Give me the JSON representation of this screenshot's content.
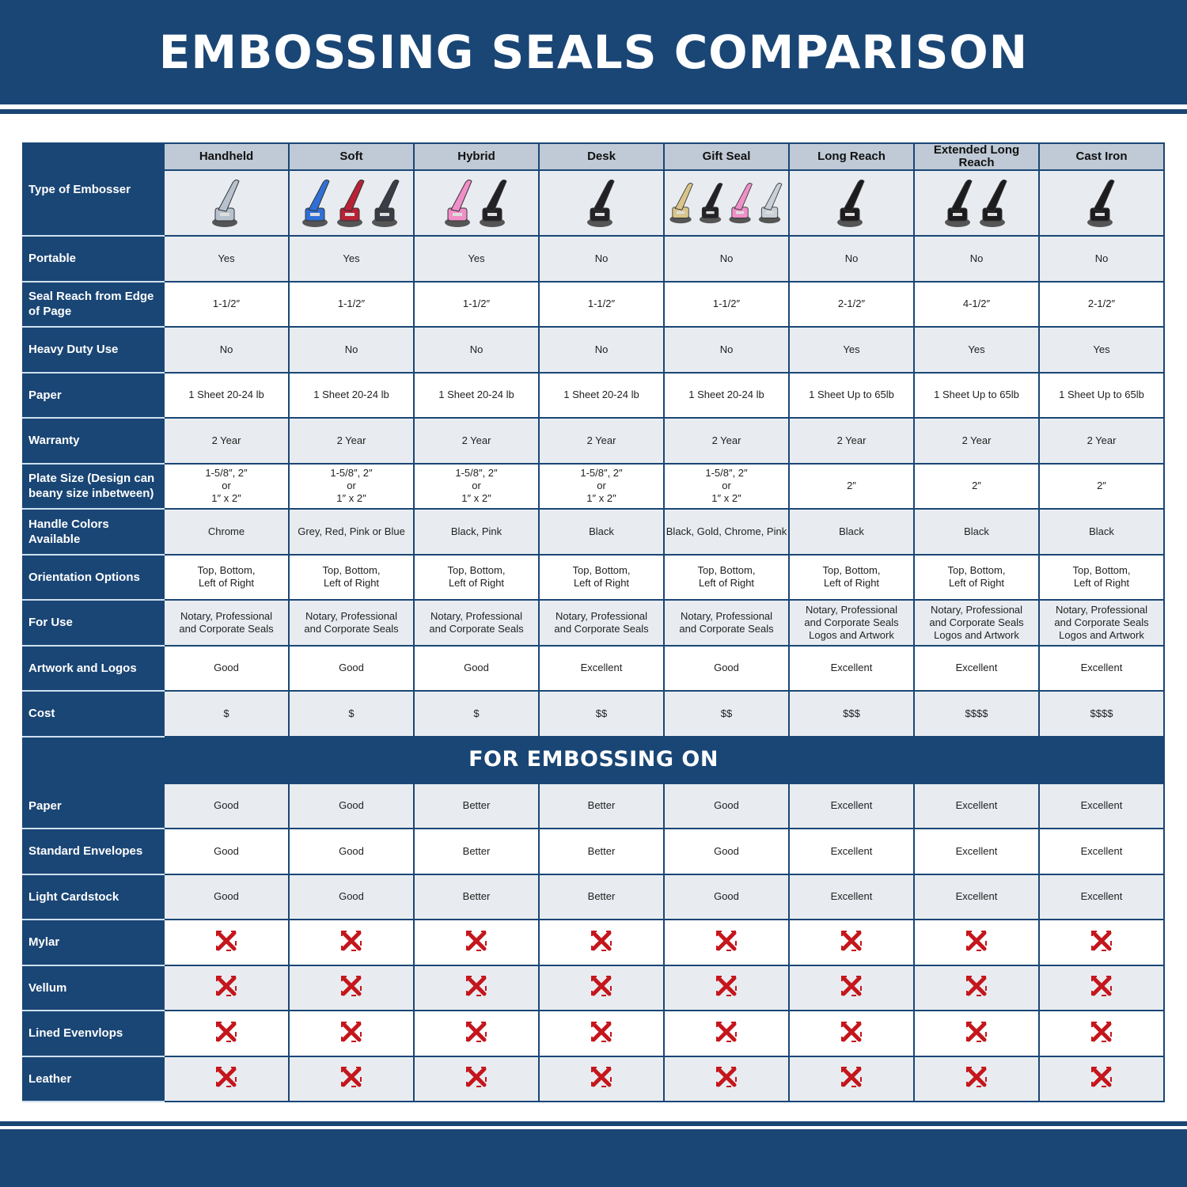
{
  "title": "EMBOSSING SEALS COMPARISON",
  "type_label": "Type of Embosser",
  "columns": [
    {
      "name": "Handheld",
      "colors": [
        "#b8c2cf"
      ]
    },
    {
      "name": "Soft",
      "colors": [
        "#2f6fd6",
        "#b82235",
        "#3a3d45"
      ]
    },
    {
      "name": "Hybrid",
      "colors": [
        "#f08fc8",
        "#222226"
      ]
    },
    {
      "name": "Desk",
      "colors": [
        "#222226"
      ]
    },
    {
      "name": "Gift Seal",
      "colors": [
        "#d9c58a",
        "#222226",
        "#f08fc8",
        "#c9d0d8"
      ]
    },
    {
      "name": "Long Reach",
      "colors": [
        "#1c1c1f"
      ]
    },
    {
      "name": "Extended Long Reach",
      "colors": [
        "#1c1c1f",
        "#1c1c1f"
      ]
    },
    {
      "name": "Cast Iron",
      "colors": [
        "#1c1c1f"
      ]
    }
  ],
  "rows": [
    {
      "label": "Portable",
      "values": [
        "Yes",
        "Yes",
        "Yes",
        "No",
        "No",
        "No",
        "No",
        "No"
      ]
    },
    {
      "label": "Seal Reach from Edge of Page",
      "values": [
        "1-1/2″",
        "1-1/2″",
        "1-1/2″",
        "1-1/2″",
        "1-1/2″",
        "2-1/2″",
        "4-1/2″",
        "2-1/2″"
      ]
    },
    {
      "label": "Heavy Duty Use",
      "values": [
        "No",
        "No",
        "No",
        "No",
        "No",
        "Yes",
        "Yes",
        "Yes"
      ]
    },
    {
      "label": "Paper",
      "values": [
        "1 Sheet 20-24 lb",
        "1 Sheet 20-24 lb",
        "1 Sheet 20-24 lb",
        "1 Sheet 20-24 lb",
        "1 Sheet 20-24 lb",
        "1 Sheet Up to 65lb",
        "1 Sheet Up to 65lb",
        "1 Sheet Up to 65lb"
      ]
    },
    {
      "label": "Warranty",
      "values": [
        "2 Year",
        "2 Year",
        "2 Year",
        "2 Year",
        "2 Year",
        "2 Year",
        "2 Year",
        "2 Year"
      ]
    },
    {
      "label": "Plate Size (Design can beany size inbetween)",
      "values": [
        "1-5/8″, 2″\nor\n1″ x 2″",
        "1-5/8″, 2″\nor\n1″ x 2″",
        "1-5/8″, 2″\nor\n1″ x 2″",
        "1-5/8″, 2″\nor\n1″ x 2″",
        "1-5/8″, 2″\nor\n1″ x 2″",
        "2″",
        "2″",
        "2″"
      ]
    },
    {
      "label": "Handle Colors Available",
      "values": [
        "Chrome",
        "Grey, Red, Pink or Blue",
        "Black, Pink",
        "Black",
        "Black, Gold, Chrome, Pink",
        "Black",
        "Black",
        "Black"
      ]
    },
    {
      "label": "Orientation Options",
      "values": [
        "Top, Bottom,\nLeft of Right",
        "Top, Bottom,\nLeft of Right",
        "Top, Bottom,\nLeft of Right",
        "Top, Bottom,\nLeft of Right",
        "Top, Bottom,\nLeft of Right",
        "Top, Bottom,\nLeft of Right",
        "Top, Bottom,\nLeft of Right",
        "Top, Bottom,\nLeft of Right"
      ]
    },
    {
      "label": "For Use",
      "values": [
        "Notary, Professional\nand Corporate Seals",
        "Notary, Professional\nand Corporate Seals",
        "Notary, Professional\nand Corporate Seals",
        "Notary, Professional\nand Corporate Seals",
        "Notary, Professional\nand Corporate Seals",
        "Notary, Professional\nand Corporate Seals\nLogos and Artwork",
        "Notary, Professional\nand Corporate Seals\nLogos and Artwork",
        "Notary, Professional\nand Corporate Seals\nLogos and Artwork"
      ]
    },
    {
      "label": "Artwork and Logos",
      "values": [
        "Good",
        "Good",
        "Good",
        "Excellent",
        "Good",
        "Excellent",
        "Excellent",
        "Excellent"
      ]
    },
    {
      "label": "Cost",
      "values": [
        "$",
        "$",
        "$",
        "$$",
        "$$",
        "$$$",
        "$$$$",
        "$$$$"
      ]
    }
  ],
  "section_title": "FOR EMBOSSING ON",
  "embossing_rows": [
    {
      "label": "Paper",
      "values": [
        "Good",
        "Good",
        "Better",
        "Better",
        "Good",
        "Excellent",
        "Excellent",
        "Excellent"
      ]
    },
    {
      "label": "Standard Envelopes",
      "values": [
        "Good",
        "Good",
        "Better",
        "Better",
        "Good",
        "Excellent",
        "Excellent",
        "Excellent"
      ]
    },
    {
      "label": "Light Cardstock",
      "values": [
        "Good",
        "Good",
        "Better",
        "Better",
        "Good",
        "Excellent",
        "Excellent",
        "Excellent"
      ]
    },
    {
      "label": "Mylar",
      "values": [
        "x",
        "x",
        "x",
        "x",
        "x",
        "x",
        "x",
        "x"
      ]
    },
    {
      "label": "Vellum",
      "values": [
        "x",
        "x",
        "x",
        "x",
        "x",
        "x",
        "x",
        "x"
      ]
    },
    {
      "label": "Lined Evenvlops",
      "values": [
        "x",
        "x",
        "x",
        "x",
        "x",
        "x",
        "x",
        "x"
      ]
    },
    {
      "label": "Leather",
      "values": [
        "x",
        "x",
        "x",
        "x",
        "x",
        "x",
        "x",
        "x"
      ]
    }
  ],
  "colors": {
    "navy": "#1a4675",
    "header_grey": "#bfcad6",
    "stripe": "#e8ecf0",
    "x_red": "#c4161c"
  },
  "icons": {
    "not_supported": "red-x-icon"
  }
}
